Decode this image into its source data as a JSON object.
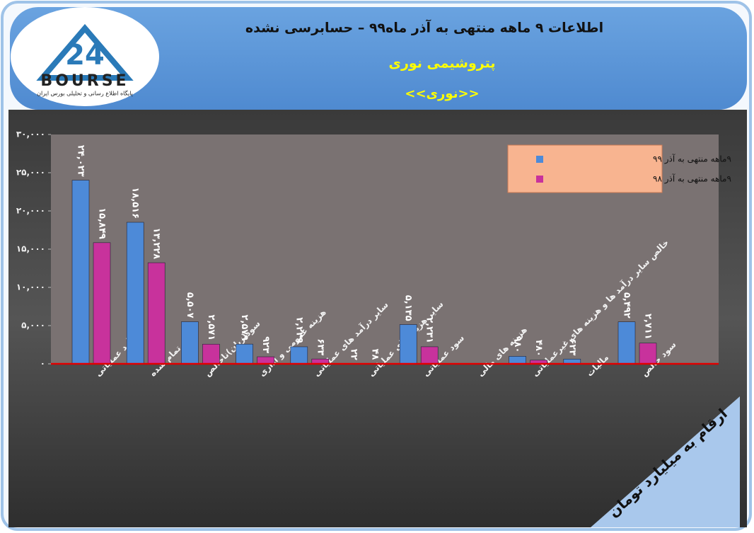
{
  "logo": {
    "mark": "24",
    "name": "BOURSE",
    "tagline": "پایگاه اطلاع رسانی و تحلیلی بورس ایران"
  },
  "chart_data": {
    "type": "bar",
    "title": "اطلاعات ۹ ماهه منتهی به آذر ماه۹۹ – حسابرسی نشده",
    "subtitle": "پتروشیمی نوری",
    "ticker": "<<نوری>>",
    "unit_note": "ارقام به میلیارد تومان",
    "categories": [
      "درآمد عملیاتی",
      "بهای تمام شده",
      "سود(زیان)ناخالص",
      "هزینه عمومی و اداری",
      "سایر درآمد های عملیاتی",
      "سایر هزینه های عملیاتی",
      "سود عملیاتی",
      "هزینه های مالی",
      "خالص سایر درآمد ها و هزینه های غیرعملیاتی",
      "مالیات",
      "سود خالص"
    ],
    "series": [
      {
        "name": "۹ماهه منتهی به آذر ۹۹",
        "color": "#4d8ad8",
        "values": [
          24023,
          18516,
          5507,
          2579,
          2229,
          22,
          5135,
          null,
          980,
          623,
          5492
        ],
        "value_labels": [
          "۲۴,۰۲۳",
          "۱۸,۵۱۶",
          "۵,۵۰۷",
          "۲,۵۷۹",
          "۲,۲۲۹",
          "۲۲",
          "۵,۱۳۵",
          null,
          "۹۸۰",
          "۶۲۳",
          "۵,۴۹۲"
        ]
      },
      {
        "name": "۹ماهه منتهی به آذر ۹۸",
        "color": "#c8329c",
        "values": [
          15849,
          13228,
          2571,
          923,
          633,
          48,
          2231,
          null,
          480,
          null,
          2711
        ],
        "value_labels": [
          "۱۵,۸۴۹",
          "۱۳,۲۲۸",
          "۲,۵۷۱",
          "۹۲۳",
          "۶۳۳",
          "۴۸",
          "۲,۲۳۱",
          null,
          "۴۸۰",
          null,
          "۲,۷۱۱"
        ]
      }
    ],
    "ylim": [
      0,
      30000
    ],
    "yticks": [
      {
        "value": 0,
        "label": "۰"
      },
      {
        "value": 5000,
        "label": "۵,۰۰۰"
      },
      {
        "value": 10000,
        "label": "۱۰,۰۰۰"
      },
      {
        "value": 15000,
        "label": "۱۵,۰۰۰"
      },
      {
        "value": 20000,
        "label": "۲۰,۰۰۰"
      },
      {
        "value": 25000,
        "label": "۲۵,۰۰۰"
      },
      {
        "value": 30000,
        "label": "۳۰,۰۰۰"
      }
    ],
    "legend": "top-right"
  }
}
